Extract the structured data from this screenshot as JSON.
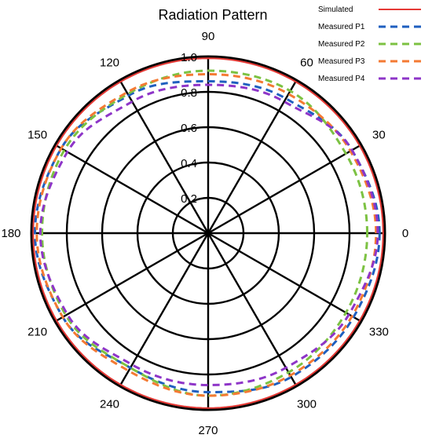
{
  "chart_data": {
    "type": "polar-line",
    "title": "Radiation Pattern",
    "angle_unit": "degrees",
    "angular_ticks": [
      "0",
      "30",
      "60",
      "90",
      "120",
      "150",
      "180",
      "210",
      "240",
      "270",
      "300",
      "330"
    ],
    "radial_ticks": [
      "0.2",
      "0.4",
      "0.6",
      "0.8",
      "1.0"
    ],
    "rlim": [
      0,
      1.0
    ],
    "grid": true,
    "legend_position": "top-right",
    "colors": {
      "simulated": "#e53935",
      "p1": "#1f5fbf",
      "p2": "#7cc242",
      "p3": "#f47a33",
      "p4": "#8e35c8"
    },
    "series": [
      {
        "name": "Simulated",
        "style": "solid",
        "color": "#e53935",
        "angles": [
          0,
          30,
          60,
          90,
          120,
          150,
          180,
          210,
          240,
          270,
          300,
          330,
          360
        ],
        "values": [
          0.99,
          0.99,
          0.99,
          0.99,
          0.99,
          0.99,
          0.99,
          0.99,
          0.99,
          0.99,
          0.99,
          0.99,
          0.99
        ]
      },
      {
        "name": "Measured P1",
        "style": "dashed",
        "color": "#1f5fbf",
        "angles": [
          0,
          30,
          60,
          90,
          120,
          150,
          180,
          210,
          240,
          270,
          300,
          330,
          360
        ],
        "values": [
          0.97,
          0.94,
          0.88,
          0.86,
          0.9,
          0.96,
          0.98,
          0.95,
          0.88,
          0.9,
          0.94,
          0.95,
          0.97
        ]
      },
      {
        "name": "Measured P2",
        "style": "dashed",
        "color": "#7cc242",
        "angles": [
          0,
          30,
          60,
          90,
          120,
          150,
          180,
          210,
          240,
          270,
          300,
          330,
          360
        ],
        "values": [
          0.9,
          0.9,
          0.93,
          0.92,
          0.91,
          0.94,
          0.94,
          0.93,
          0.88,
          0.92,
          0.91,
          0.9,
          0.9
        ]
      },
      {
        "name": "Measured P3",
        "style": "dashed",
        "color": "#f47a33",
        "angles": [
          0,
          30,
          60,
          90,
          120,
          150,
          180,
          210,
          240,
          270,
          300,
          330,
          360
        ],
        "values": [
          0.95,
          0.93,
          0.91,
          0.9,
          0.92,
          0.96,
          0.97,
          0.95,
          0.9,
          0.92,
          0.93,
          0.94,
          0.95
        ]
      },
      {
        "name": "Measured P4",
        "style": "dashed",
        "color": "#8e35c8",
        "angles": [
          0,
          30,
          60,
          90,
          120,
          150,
          180,
          210,
          240,
          270,
          300,
          330,
          360
        ],
        "values": [
          0.96,
          0.94,
          0.86,
          0.84,
          0.86,
          0.92,
          0.95,
          0.92,
          0.86,
          0.86,
          0.88,
          0.92,
          0.96
        ]
      }
    ]
  }
}
